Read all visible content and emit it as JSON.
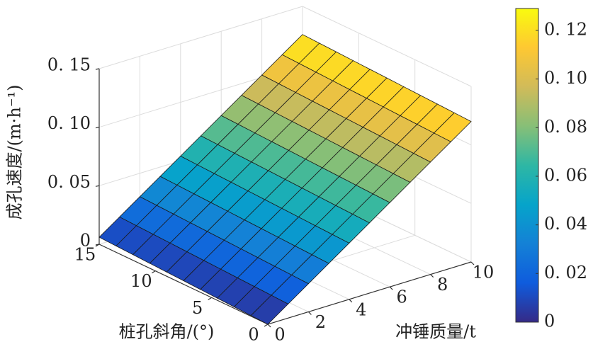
{
  "chart_data": {
    "type": "surface",
    "xlabel": "冲锤质量/t",
    "ylabel": "桩孔斜角/(°)",
    "zlabel": "成孔速度/(m·h⁻¹)",
    "x": [
      0,
      1,
      2,
      3,
      4,
      5,
      6,
      7,
      8,
      9,
      10
    ],
    "y": [
      0,
      1.5,
      3,
      4.5,
      6,
      7.5,
      9,
      10.5,
      12,
      13.5,
      15
    ],
    "z": [
      [
        0,
        0.012,
        0.024,
        0.036,
        0.048,
        0.06,
        0.072,
        0.084,
        0.096,
        0.108,
        0.12
      ],
      [
        0.0006,
        0.0126,
        0.0246,
        0.0366,
        0.0486,
        0.0606,
        0.0726,
        0.0846,
        0.0966,
        0.1086,
        0.1206
      ],
      [
        0.0012,
        0.0132,
        0.0252,
        0.0372,
        0.0492,
        0.0612,
        0.0732,
        0.0852,
        0.0972,
        0.1092,
        0.1212
      ],
      [
        0.0018,
        0.0138,
        0.0258,
        0.0378,
        0.0498,
        0.0618,
        0.0738,
        0.0858,
        0.0978,
        0.1098,
        0.1218
      ],
      [
        0.0024,
        0.0144,
        0.0264,
        0.0384,
        0.0504,
        0.0624,
        0.0744,
        0.0864,
        0.0984,
        0.1104,
        0.1224
      ],
      [
        0.003,
        0.015,
        0.027,
        0.039,
        0.051,
        0.063,
        0.075,
        0.087,
        0.099,
        0.111,
        0.123
      ],
      [
        0.0036,
        0.0156,
        0.0276,
        0.0396,
        0.0516,
        0.0636,
        0.0756,
        0.0876,
        0.0996,
        0.1116,
        0.1236
      ],
      [
        0.0042,
        0.0162,
        0.0282,
        0.0402,
        0.0522,
        0.0642,
        0.0762,
        0.0882,
        0.1002,
        0.1122,
        0.1242
      ],
      [
        0.0048,
        0.0168,
        0.0288,
        0.0408,
        0.0528,
        0.0648,
        0.0768,
        0.0888,
        0.1008,
        0.1128,
        0.1248
      ],
      [
        0.0054,
        0.0174,
        0.0294,
        0.0414,
        0.0534,
        0.0654,
        0.0774,
        0.0894,
        0.1014,
        0.1134,
        0.1254
      ],
      [
        0.006,
        0.018,
        0.03,
        0.042,
        0.054,
        0.066,
        0.078,
        0.09,
        0.102,
        0.114,
        0.126
      ]
    ],
    "xlim": [
      0,
      10
    ],
    "xticks": [
      0,
      2,
      4,
      6,
      8,
      10
    ],
    "ylim": [
      0,
      15
    ],
    "yticks": [
      0,
      5,
      10,
      15
    ],
    "zlim": [
      0,
      0.15
    ],
    "zticks": [
      0,
      {
        "value": 0.05,
        "label": "0. 05"
      },
      {
        "value": 0.1,
        "label": "0. 10"
      },
      {
        "value": 0.15,
        "label": "0. 15"
      }
    ],
    "colormap": "parula",
    "grid": true,
    "clim": [
      0,
      0.129
    ],
    "cticks": [
      0,
      {
        "value": 0.02,
        "label": "0. 02"
      },
      {
        "value": 0.04,
        "label": "0. 04"
      },
      {
        "value": 0.06,
        "label": "0. 06"
      },
      {
        "value": 0.08,
        "label": "0. 08"
      },
      {
        "value": 0.1,
        "label": "0. 10"
      },
      {
        "value": 0.12,
        "label": "0. 12"
      }
    ]
  }
}
